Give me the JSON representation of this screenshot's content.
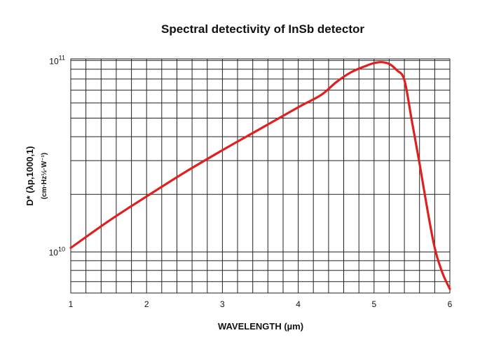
{
  "chart_data": {
    "type": "line",
    "title": "Spectral detectivity of InSb detector",
    "xlabel": "WAVELENGTH (µm)",
    "ylabel": "D* (λp,1000,1)",
    "ylabel_unit": "(cm·Hz½·W⁻¹)",
    "x_scale": "linear",
    "y_scale": "log",
    "xlim": [
      1,
      6
    ],
    "ylim": [
      6100000000.0,
      102000000000.0
    ],
    "x_ticks": [
      1,
      2,
      3,
      4,
      5,
      6
    ],
    "x_tick_labels": [
      "1",
      "2",
      "3",
      "4",
      "5",
      "6"
    ],
    "y_ticks": [
      10000000000.0,
      100000000000.0
    ],
    "y_tick_labels": [
      {
        "base": "10",
        "exp": "10"
      },
      {
        "base": "10",
        "exp": "11"
      }
    ],
    "grid": true,
    "legend": "none",
    "line_color": "#e02020",
    "series": [
      {
        "x": [
          1.0,
          1.5,
          2.0,
          2.5,
          3.0,
          3.5,
          4.0,
          4.3,
          4.5,
          4.7,
          4.9,
          5.0,
          5.1,
          5.2,
          5.3,
          5.4,
          5.5,
          5.6,
          5.7,
          5.8,
          5.9,
          6.0
        ],
        "values": [
          10500000000.0,
          14500000000.0,
          19500000000.0,
          26000000000.0,
          34000000000.0,
          44000000000.0,
          57000000000.0,
          66000000000.0,
          77000000000.0,
          87000000000.0,
          94000000000.0,
          97000000000.0,
          98000000000.0,
          96000000000.0,
          89000000000.0,
          79000000000.0,
          48000000000.0,
          29000000000.0,
          17000000000.0,
          10500000000.0,
          7800000000.0,
          6400000000.0
        ]
      }
    ]
  }
}
